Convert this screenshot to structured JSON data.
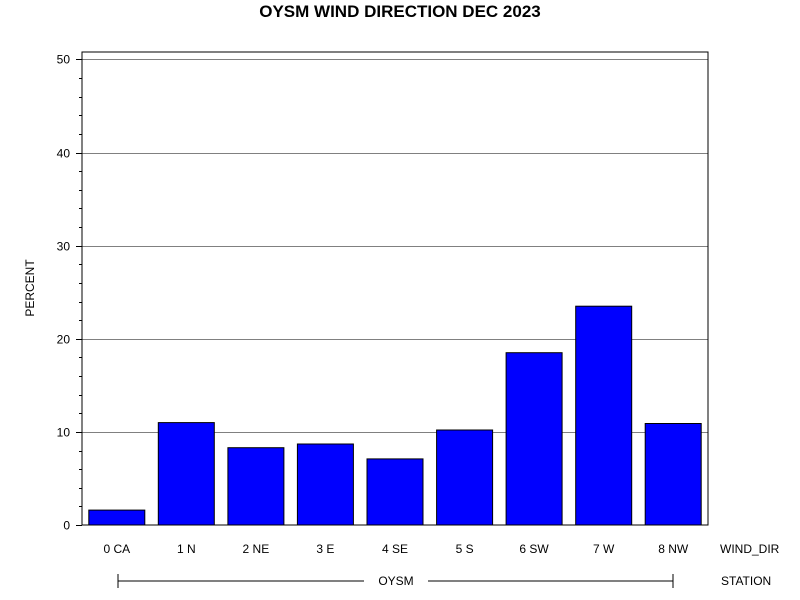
{
  "chart_data": {
    "type": "bar",
    "title": "OYSM WIND DIRECTION DEC 2023",
    "ylabel": "PERCENT",
    "xlabel": "WIND_DIR",
    "group_axis_label": "STATION",
    "group": "OYSM",
    "categories": [
      "0 CA",
      "1 N",
      "2 NE",
      "3 E",
      "4 SE",
      "5 S",
      "6 SW",
      "7 W",
      "8 NW"
    ],
    "values": [
      1.6,
      11.0,
      8.3,
      8.7,
      7.1,
      10.2,
      18.5,
      23.5,
      10.9
    ],
    "ylim": [
      0,
      50
    ],
    "yticks": [
      0,
      10,
      20,
      30,
      40,
      50
    ],
    "yticklabels": [
      "0",
      "10",
      "20",
      "30",
      "40",
      "50"
    ],
    "grid": true,
    "bar_color": "#0000ff"
  }
}
